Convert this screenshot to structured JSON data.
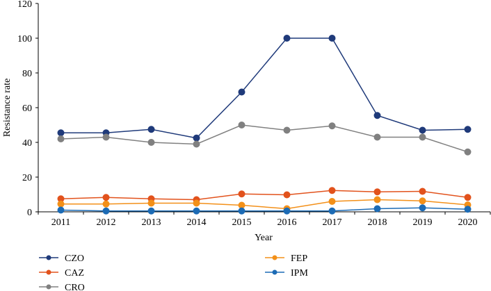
{
  "chart_data": {
    "type": "line",
    "title": "",
    "xlabel": "Year",
    "ylabel": "Resistance rate",
    "ylim": [
      0,
      120
    ],
    "yticks": [
      0,
      20,
      40,
      60,
      80,
      100,
      120
    ],
    "categories": [
      "2011",
      "2012",
      "2013",
      "2014",
      "2015",
      "2016",
      "2017",
      "2018",
      "2019",
      "2020"
    ],
    "series": [
      {
        "name": "CZO",
        "color": "#1f3a7a",
        "values": [
          45.5,
          45.5,
          47.5,
          42.5,
          69,
          100,
          100,
          55.5,
          47,
          47.5
        ]
      },
      {
        "name": "CAZ",
        "color": "#e2521c",
        "values": [
          7.5,
          8.3,
          7.5,
          7,
          10.3,
          9.8,
          12.3,
          11.5,
          11.8,
          8.3
        ]
      },
      {
        "name": "CRO",
        "color": "#808080",
        "values": [
          42,
          43,
          40,
          39,
          50,
          47,
          49.5,
          43,
          43,
          34.5
        ]
      },
      {
        "name": "FEP",
        "color": "#f39019",
        "values": [
          4.5,
          4.5,
          5,
          5,
          3.8,
          1.8,
          6,
          7,
          6.3,
          4
        ]
      },
      {
        "name": "IPM",
        "color": "#1c6bb5",
        "values": [
          1,
          0.5,
          0.5,
          0.5,
          0.5,
          0.5,
          0.5,
          1.8,
          2.3,
          1.5
        ]
      }
    ],
    "legend": "bottom",
    "grid": false
  }
}
